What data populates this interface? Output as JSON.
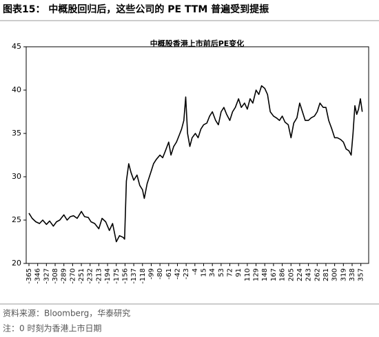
{
  "chart_data": {
    "type": "line",
    "header": "图表15：  中概股回归后，这些公司的 PE TTM 普遍受到提振",
    "title": "中概股香港上市前后PE变化",
    "source": "资料来源：Bloomberg，华泰研究",
    "note": "注：0 时刻为香港上市日期",
    "color": "#000000",
    "x": [
      -365,
      -358,
      -350,
      -342,
      -335,
      -327,
      -320,
      -312,
      -305,
      -298,
      -289,
      -282,
      -275,
      -268,
      -260,
      -251,
      -244,
      -236,
      -230,
      -222,
      -213,
      -206,
      -198,
      -190,
      -183,
      -175,
      -168,
      -160,
      -157,
      -153,
      -148,
      -143,
      -137,
      -130,
      -124,
      -118,
      -114,
      -108,
      -100,
      -94,
      -88,
      -80,
      -74,
      -68,
      -61,
      -56,
      -50,
      -44,
      -38,
      -33,
      -28,
      -24,
      -20,
      -15,
      -10,
      -3,
      3,
      9,
      15,
      22,
      28,
      34,
      41,
      47,
      53,
      59,
      65,
      72,
      78,
      84,
      91,
      97,
      104,
      110,
      116,
      122,
      129,
      135,
      141,
      148,
      154,
      160,
      167,
      173,
      180,
      186,
      192,
      199,
      205,
      211,
      218,
      224,
      230,
      236,
      243,
      249,
      256,
      262,
      268,
      275,
      281,
      287,
      294,
      300,
      306,
      313,
      319,
      325,
      331,
      336,
      340,
      344,
      348,
      352,
      356,
      360
    ],
    "values": [
      25.8,
      25.2,
      24.8,
      24.6,
      25.0,
      24.5,
      24.9,
      24.3,
      24.8,
      25.0,
      25.6,
      25.0,
      25.4,
      25.5,
      25.2,
      26.0,
      25.4,
      25.3,
      24.8,
      24.6,
      24.0,
      25.2,
      24.8,
      23.8,
      24.6,
      22.5,
      23.2,
      23.0,
      22.8,
      29.5,
      31.5,
      30.5,
      29.6,
      30.2,
      29.0,
      28.5,
      27.5,
      29.2,
      30.5,
      31.5,
      32.0,
      32.5,
      32.2,
      33.0,
      34.0,
      32.5,
      33.5,
      34.0,
      34.8,
      35.5,
      36.5,
      39.2,
      35.0,
      33.5,
      34.5,
      35.0,
      34.5,
      35.5,
      36.0,
      36.2,
      37.0,
      37.5,
      36.5,
      36.0,
      37.5,
      38.0,
      37.2,
      36.5,
      37.5,
      38.0,
      39.0,
      38.0,
      38.5,
      37.8,
      39.0,
      38.5,
      40.0,
      39.5,
      40.5,
      40.2,
      39.5,
      37.5,
      37.0,
      36.8,
      36.5,
      37.0,
      36.3,
      36.0,
      34.5,
      36.2,
      36.8,
      38.5,
      37.5,
      36.5,
      36.5,
      36.8,
      37.0,
      37.5,
      38.5,
      38.0,
      38.0,
      36.5,
      35.5,
      34.5,
      34.5,
      34.3,
      34.0,
      33.2,
      33.0,
      32.5,
      35.0,
      38.2,
      37.2,
      37.8,
      39.0,
      37.5
    ],
    "xlim": [
      -371,
      374
    ],
    "ylim": [
      20,
      45
    ],
    "xticks": [
      -365,
      -346,
      -327,
      -308,
      -289,
      -270,
      -251,
      -232,
      -213,
      -194,
      -175,
      -156,
      -137,
      -118,
      -99,
      -80,
      -61,
      -42,
      -23,
      -4,
      15,
      34,
      53,
      72,
      91,
      110,
      129,
      148,
      167,
      186,
      205,
      224,
      243,
      262,
      281,
      300,
      319,
      338,
      357
    ],
    "yticks": [
      20,
      25,
      30,
      35,
      40,
      45
    ]
  }
}
